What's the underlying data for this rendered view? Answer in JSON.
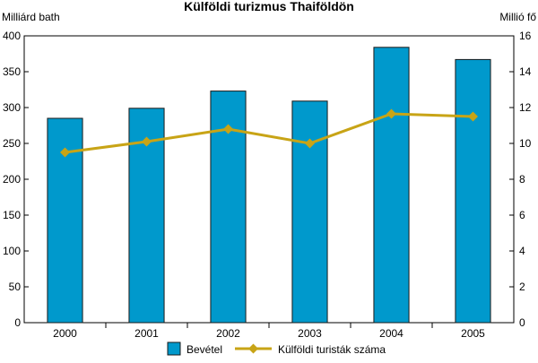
{
  "chart_data": {
    "type": "bar+line",
    "title": "Külföldi turizmus Thaiföldön",
    "categories": [
      "2000",
      "2001",
      "2002",
      "2003",
      "2004",
      "2005"
    ],
    "y_left_label": "Milliárd bath",
    "y_right_label": "Millió fő",
    "y_left_lim": [
      0,
      400
    ],
    "y_right_lim": [
      0,
      16
    ],
    "y_left_ticks": [
      "0",
      "50",
      "100",
      "150",
      "200",
      "250",
      "300",
      "350",
      "400"
    ],
    "y_right_ticks": [
      "0",
      "2",
      "4",
      "6",
      "8",
      "10",
      "12",
      "14",
      "16"
    ],
    "grid": false,
    "legend_position": "bottom",
    "series": [
      {
        "name": "Bevétel",
        "type": "bar",
        "axis": "left",
        "color": "#0099cc",
        "values": [
          285,
          299,
          323,
          309,
          384,
          367
        ]
      },
      {
        "name": "Külföldi turisták száma",
        "type": "line",
        "axis": "right",
        "color": "#c8a416",
        "values": [
          9.5,
          10.1,
          10.8,
          10.0,
          11.65,
          11.5
        ]
      }
    ]
  }
}
